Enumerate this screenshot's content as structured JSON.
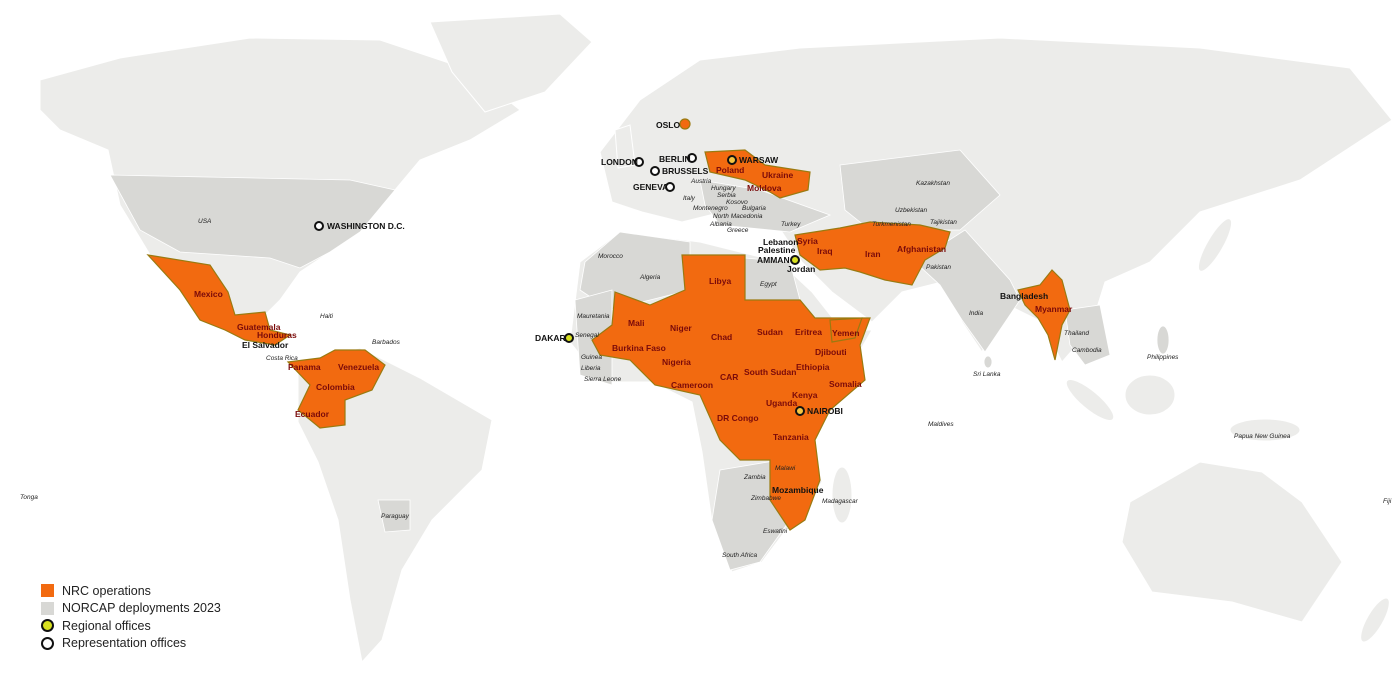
{
  "colors": {
    "land": "#ececea",
    "norcap": "#d8d8d5",
    "nrc": "#f26a10",
    "regional_office": "#d8e020",
    "representation_office": "#ffffff"
  },
  "legend": [
    {
      "label": "NRC operations",
      "type": "nrc"
    },
    {
      "label": "NORCAP deployments 2023",
      "type": "norcap"
    },
    {
      "label": "Regional offices",
      "type": "regional"
    },
    {
      "label": "Representation offices",
      "type": "representation"
    }
  ],
  "offices": {
    "oslo": "OSLO",
    "london": "LONDON",
    "berlin": "BERLIN",
    "brussels": "BRUSSELS",
    "geneva": "GENEVA",
    "warsaw": "WARSAW",
    "washington": "WASHINGTON D.C.",
    "amman": "AMMAN",
    "dakar": "DAKAR",
    "nairobi": "NAIROBI"
  },
  "nrc_countries": {
    "mexico": "Mexico",
    "guatemala": "Guatemala",
    "honduras": "Honduras",
    "el_salvador": "El Salvador",
    "panama": "Panama",
    "venezuela": "Venezuela",
    "colombia": "Colombia",
    "ecuador": "Ecuador",
    "mali": "Mali",
    "niger": "Niger",
    "burkina_faso": "Burkina Faso",
    "nigeria": "Nigeria",
    "chad": "Chad",
    "cameroon": "Cameroon",
    "car": "CAR",
    "sudan": "Sudan",
    "south_sudan": "South Sudan",
    "eritrea": "Eritrea",
    "yemen": "Yemen",
    "djibouti": "Djibouti",
    "ethiopia": "Ethiopia",
    "somalia": "Somalia",
    "kenya": "Kenya",
    "uganda": "Uganda",
    "dr_congo": "DR Congo",
    "tanzania": "Tanzania",
    "mozambique": "Mozambique",
    "libya": "Libya",
    "poland": "Poland",
    "ukraine": "Ukraine",
    "moldova": "Moldova",
    "syria": "Syria",
    "iraq": "Iraq",
    "iran": "Iran",
    "afghanistan": "Afghanistan",
    "myanmar": "Myanmar",
    "jordan": "Jordan",
    "lebanon": "Lebanon",
    "palestine": "Palestine",
    "bangladesh": "Bangladesh"
  },
  "norcap_countries": {
    "usa": "USA",
    "haiti": "Haiti",
    "barbados": "Barbados",
    "costa_rica": "Costa Rica",
    "morocco": "Morocco",
    "algeria": "Algeria",
    "egypt": "Egypt",
    "mauretania": "Mauretania",
    "senegal": "Senegal",
    "guinea": "Guinea",
    "liberia": "Liberia",
    "sierra_leone": "Sierra Leone",
    "austria": "Austria",
    "hungary": "Hungary",
    "serbia": "Serbia",
    "kosovo": "Kosovo",
    "italy": "Italy",
    "montenegro": "Montenegro",
    "bulgaria": "Bulgaria",
    "north_macedonia": "North Macedonia",
    "albania": "Albania",
    "greece": "Greece",
    "turkey": "Turkey",
    "kazakhstan": "Kazakhstan",
    "uzbekistan": "Uzbekistan",
    "turkmenistan": "Turkmenistan",
    "tajikistan": "Tajikistan",
    "pakistan": "Pakistan",
    "india": "India",
    "thailand": "Thailand",
    "cambodia": "Cambodia",
    "philippines": "Philippines",
    "sri_lanka": "Sri Lanka",
    "maldives": "Maldives",
    "papua_new_guinea": "Papua New Guinea",
    "fiji": "Fiji",
    "tonga": "Tonga",
    "paraguay": "Paraguay",
    "zambia": "Zambia",
    "zimbabwe": "Zimbabwe",
    "malawi": "Malawi",
    "madagascar": "Madagascar",
    "eswatini": "Eswatini",
    "south_africa": "South Africa"
  }
}
